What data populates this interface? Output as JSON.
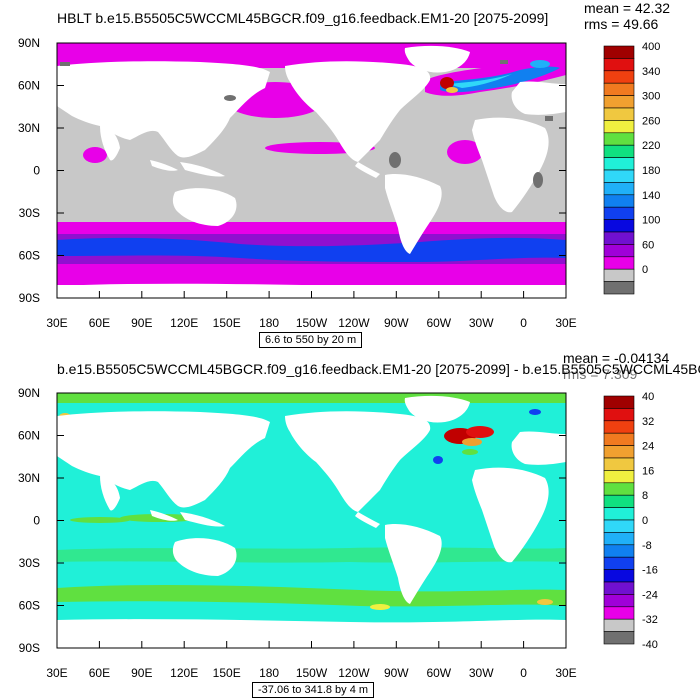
{
  "panel1": {
    "title": "HBLT b.e15.B5505C5WCCML45BGCR.f09_g16.feedback.EM1-20 [2075-2099]",
    "stats": {
      "mean": "mean = 42.32",
      "rms": "rms = 49.66"
    },
    "range_label": "6.6 to 550 by 20 m",
    "legend_labels": [
      "400",
      "340",
      "300",
      "260",
      "220",
      "180",
      "140",
      "100",
      "60",
      "0"
    ],
    "legend_colors": [
      "#a00000",
      "#e01010",
      "#f04010",
      "#f07a20",
      "#f0a030",
      "#f0c840",
      "#f0f040",
      "#60e040",
      "#10e080",
      "#20f0d8",
      "#30d8f8",
      "#20b0f8",
      "#1080f0",
      "#1040f0",
      "#0808e0",
      "#7010d0",
      "#a000d8",
      "#e800e8",
      "#c8c8c8",
      "#707070"
    ]
  },
  "panel2": {
    "title": "b.e15.B5505C5WCCML45BGCR.f09_g16.feedback.EM1-20 [2075-2099] - b.e15.B5505C5WCCML45BGC",
    "stats": {
      "mean": "mean = -0.04134",
      "rms": "rms = 7.309"
    },
    "range_label": "-37.06 to 341.8 by 4 m",
    "legend_labels": [
      "40",
      "32",
      "24",
      "16",
      "8",
      "0",
      "-8",
      "-16",
      "-24",
      "-32",
      "-40"
    ],
    "legend_colors": [
      "#a00000",
      "#e01010",
      "#f04010",
      "#f07a20",
      "#f0a030",
      "#f0c840",
      "#f0f040",
      "#60e040",
      "#10e080",
      "#20f0d8",
      "#30d8f8",
      "#20b0f8",
      "#1080f0",
      "#1040f0",
      "#0808e0",
      "#7010d0",
      "#a000d8",
      "#e800e8",
      "#c8c8c8",
      "#707070"
    ]
  },
  "axes": {
    "lat_labels": [
      "90N",
      "60N",
      "30N",
      "0",
      "30S",
      "60S",
      "90S"
    ],
    "lon_labels": [
      "30E",
      "60E",
      "90E",
      "120E",
      "150E",
      "180",
      "150W",
      "120W",
      "90W",
      "60W",
      "30W",
      "0",
      "30E"
    ]
  },
  "colors": {
    "land": "#ffffff",
    "grey": "#c8c8c8",
    "dark_grey": "#707070",
    "magenta": "#e800e8",
    "purple": "#8000d0",
    "blue": "#1040f0",
    "cyan": "#20f0d8",
    "teal": "#20e8c0",
    "green": "#60e040",
    "red": "#c00000"
  }
}
